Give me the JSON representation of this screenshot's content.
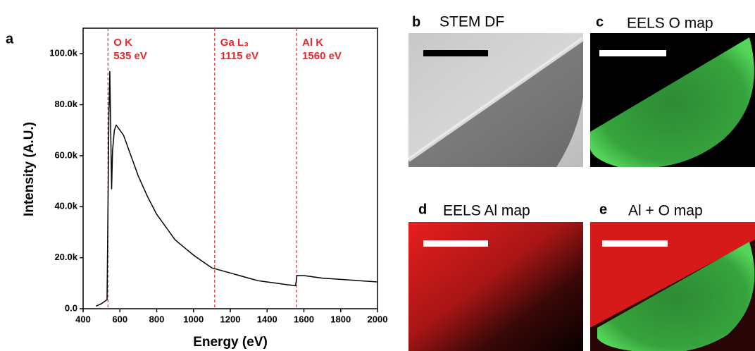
{
  "panel_label": "a",
  "chart_data": {
    "type": "line",
    "x_label": "Energy (eV)",
    "y_label": "Intensity (A.U.)",
    "x": [
      470,
      500,
      530,
      536,
      540,
      545,
      550,
      555,
      560,
      570,
      580,
      600,
      620,
      650,
      700,
      750,
      800,
      850,
      900,
      950,
      1000,
      1050,
      1100,
      1150,
      1200,
      1250,
      1300,
      1350,
      1400,
      1450,
      1500,
      1555,
      1562,
      1600,
      1700,
      1800,
      1900,
      2000
    ],
    "values": [
      1000,
      2000,
      3500,
      45000,
      75000,
      93000,
      70000,
      47000,
      62000,
      70000,
      72000,
      70000,
      68000,
      62000,
      52000,
      44000,
      37000,
      32000,
      27000,
      24000,
      21000,
      18500,
      16000,
      15000,
      14000,
      13000,
      12000,
      11000,
      10500,
      10000,
      9500,
      9000,
      13000,
      13000,
      12000,
      11500,
      11000,
      10500
    ],
    "color": "#000000",
    "xlim": [
      400,
      2000
    ],
    "ylim": [
      0,
      110000
    ],
    "xticks": [
      400,
      600,
      800,
      1000,
      1200,
      1400,
      1600,
      1800,
      2000
    ],
    "yticks": [
      {
        "value": 0,
        "label": "0.0"
      },
      {
        "value": 20000,
        "label": "20.0k"
      },
      {
        "value": 40000,
        "label": "40.0k"
      },
      {
        "value": 60000,
        "label": "60.0k"
      },
      {
        "value": 80000,
        "label": "80.0k"
      },
      {
        "value": 100000,
        "label": "100.0k"
      }
    ],
    "annotations": [
      {
        "x": 535,
        "edge": "O K",
        "energy": "535 eV"
      },
      {
        "x": 1115,
        "edge": "Ga L₃",
        "energy": "1115 eV"
      },
      {
        "x": 1560,
        "edge": "Al K",
        "energy": "1560 eV"
      }
    ],
    "annotation_color": "#e8262b"
  },
  "panels": [
    {
      "letter": "b",
      "title": "STEM DF"
    },
    {
      "letter": "c",
      "title": "EELS O map"
    },
    {
      "letter": "d",
      "title": "EELS Al map"
    },
    {
      "letter": "e",
      "title": "Al + O map"
    }
  ]
}
